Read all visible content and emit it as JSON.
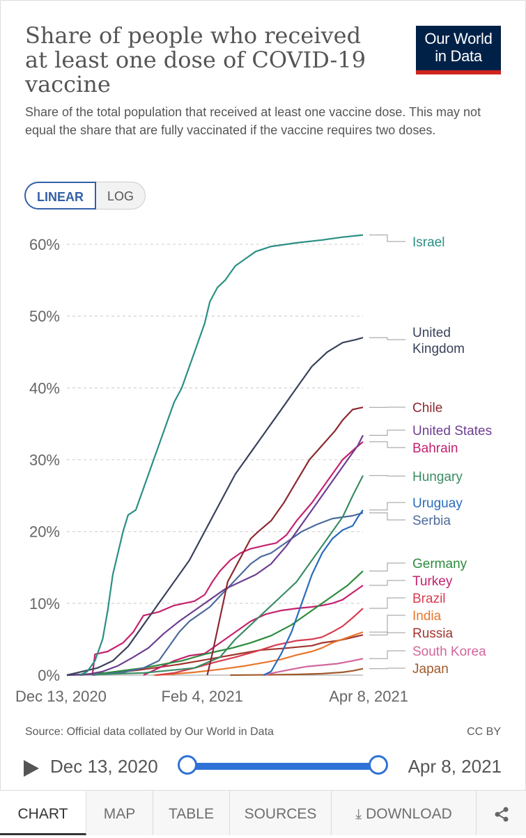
{
  "title": "Share of people who received at least one dose of COVID-19 vaccine",
  "subtitle": "Share of the total population that received at least one vaccine dose. This may not equal the share that are fully vaccinated if the vaccine requires two doses.",
  "logo": {
    "line1": "Our World",
    "line2": "in Data"
  },
  "scale_toggle": {
    "linear": "LINEAR",
    "log": "LOG",
    "selected": "LINEAR"
  },
  "source": "Source: Official data collated by Our World in Data",
  "license": "CC BY",
  "timeline": {
    "start": "Dec 13, 2020",
    "end": "Apr 8, 2021"
  },
  "tabs": {
    "chart": "CHART",
    "map": "MAP",
    "table": "TABLE",
    "sources": "SOURCES",
    "download": "DOWNLOAD",
    "active": "chart"
  },
  "icons": {
    "play": "play-icon",
    "download": "download-icon",
    "share": "share-icon"
  },
  "colors": {
    "accent": "#3360a9",
    "logo_bg": "#002147",
    "logo_bar": "#ce261e"
  },
  "chart_data": {
    "type": "line",
    "xaxis": {
      "start": 0,
      "end": 116,
      "unit": "days since Dec 13, 2020",
      "ticks": [
        {
          "x": 0,
          "label": "Dec 13, 2020"
        },
        {
          "x": 53,
          "label": "Feb 4, 2021"
        },
        {
          "x": 116,
          "label": "Apr 8, 2021"
        }
      ]
    },
    "yaxis": {
      "min": 0,
      "max": 60,
      "ticks": [
        0,
        10,
        20,
        30,
        40,
        50,
        60
      ],
      "tick_format": "%"
    },
    "grid": true,
    "series": [
      {
        "name": "Israel",
        "color": "#2a8f84",
        "label_pos": 347,
        "points": [
          [
            5,
            0
          ],
          [
            8,
            0.5
          ],
          [
            11,
            2
          ],
          [
            14,
            5
          ],
          [
            16,
            9
          ],
          [
            18,
            14
          ],
          [
            20,
            17
          ],
          [
            22,
            20
          ],
          [
            24,
            22.3
          ],
          [
            27,
            23
          ],
          [
            30,
            26
          ],
          [
            33,
            29
          ],
          [
            36,
            32
          ],
          [
            39,
            35
          ],
          [
            42,
            38
          ],
          [
            45,
            40
          ],
          [
            48,
            43
          ],
          [
            51,
            46
          ],
          [
            54,
            49
          ],
          [
            56,
            52
          ],
          [
            59,
            54
          ],
          [
            62,
            55
          ],
          [
            64,
            56
          ],
          [
            66,
            57
          ],
          [
            70,
            58
          ],
          [
            74,
            59
          ],
          [
            80,
            59.7
          ],
          [
            90,
            60.2
          ],
          [
            100,
            60.6
          ],
          [
            108,
            61
          ],
          [
            116,
            61.3
          ]
        ]
      },
      {
        "name": "United Kingdom",
        "color": "#38425a",
        "label_pos": 486,
        "points": [
          [
            0,
            0
          ],
          [
            6,
            0.5
          ],
          [
            12,
            1
          ],
          [
            18,
            2
          ],
          [
            24,
            4
          ],
          [
            30,
            7
          ],
          [
            36,
            10
          ],
          [
            42,
            13
          ],
          [
            48,
            16
          ],
          [
            54,
            20
          ],
          [
            60,
            24
          ],
          [
            66,
            28
          ],
          [
            72,
            31
          ],
          [
            78,
            34
          ],
          [
            84,
            37
          ],
          [
            90,
            40
          ],
          [
            96,
            43
          ],
          [
            102,
            45
          ],
          [
            108,
            46.3
          ],
          [
            113,
            46.7
          ],
          [
            116,
            47
          ]
        ]
      },
      {
        "name": "Chile",
        "color": "#8b2930",
        "label_pos": 585,
        "points": [
          [
            55,
            0
          ],
          [
            57,
            3
          ],
          [
            60,
            8
          ],
          [
            63,
            13
          ],
          [
            66,
            15
          ],
          [
            69,
            17
          ],
          [
            72,
            19
          ],
          [
            75,
            20
          ],
          [
            80,
            21.5
          ],
          [
            85,
            24
          ],
          [
            90,
            27
          ],
          [
            95,
            30
          ],
          [
            100,
            32
          ],
          [
            105,
            34
          ],
          [
            108,
            35.5
          ],
          [
            112,
            37
          ],
          [
            116,
            37.3
          ]
        ]
      },
      {
        "name": "United States",
        "color": "#6d3e91",
        "label_pos": 618,
        "points": [
          [
            0,
            0
          ],
          [
            8,
            0.1
          ],
          [
            14,
            0.5
          ],
          [
            20,
            1.3
          ],
          [
            26,
            2.5
          ],
          [
            32,
            3.8
          ],
          [
            38,
            5.8
          ],
          [
            44,
            7.5
          ],
          [
            50,
            9
          ],
          [
            56,
            10.5
          ],
          [
            62,
            12
          ],
          [
            68,
            13
          ],
          [
            74,
            14
          ],
          [
            80,
            15.5
          ],
          [
            86,
            18
          ],
          [
            92,
            21
          ],
          [
            98,
            24
          ],
          [
            104,
            27
          ],
          [
            110,
            30
          ],
          [
            114,
            32
          ],
          [
            116,
            33.4
          ]
        ]
      },
      {
        "name": "Bahrain",
        "color": "#c4216e",
        "label_pos": 643,
        "points": [
          [
            10,
            0
          ],
          [
            11,
            2.9
          ],
          [
            16,
            3.3
          ],
          [
            22,
            4.5
          ],
          [
            26,
            6
          ],
          [
            30,
            8.3
          ],
          [
            36,
            8.8
          ],
          [
            42,
            9.7
          ],
          [
            46,
            10
          ],
          [
            50,
            10.3
          ],
          [
            54,
            11.2
          ],
          [
            57,
            13
          ],
          [
            60,
            14.5
          ],
          [
            64,
            16
          ],
          [
            68,
            17
          ],
          [
            72,
            17.6
          ],
          [
            78,
            18.1
          ],
          [
            82,
            18.4
          ],
          [
            86,
            19.5
          ],
          [
            90,
            21.5
          ],
          [
            96,
            24
          ],
          [
            102,
            27
          ],
          [
            108,
            30
          ],
          [
            113,
            31.6
          ],
          [
            116,
            32.5
          ]
        ]
      },
      {
        "name": "Hungary",
        "color": "#3a8c63",
        "label_pos": 684,
        "points": [
          [
            0,
            0
          ],
          [
            30,
            0.3
          ],
          [
            50,
            1
          ],
          [
            60,
            2.5
          ],
          [
            66,
            5
          ],
          [
            72,
            7
          ],
          [
            78,
            9
          ],
          [
            84,
            11
          ],
          [
            90,
            13
          ],
          [
            96,
            16
          ],
          [
            102,
            19
          ],
          [
            108,
            22
          ],
          [
            112,
            25
          ],
          [
            116,
            27.8
          ]
        ]
      },
      {
        "name": "Uruguay",
        "color": "#286bbb",
        "label_pos": 722,
        "points": [
          [
            77,
            0
          ],
          [
            80,
            0.5
          ],
          [
            84,
            3
          ],
          [
            88,
            6
          ],
          [
            92,
            10
          ],
          [
            96,
            14
          ],
          [
            100,
            17
          ],
          [
            104,
            19
          ],
          [
            108,
            20.2
          ],
          [
            112,
            20.8
          ],
          [
            114,
            22
          ],
          [
            116,
            23
          ]
        ]
      },
      {
        "name": "Serbia",
        "color": "#4c6a9c",
        "label_pos": 747,
        "points": [
          [
            10,
            0
          ],
          [
            16,
            0.2
          ],
          [
            22,
            0.4
          ],
          [
            30,
            1
          ],
          [
            36,
            2
          ],
          [
            40,
            4
          ],
          [
            44,
            6
          ],
          [
            48,
            7.5
          ],
          [
            52,
            8.5
          ],
          [
            56,
            9.5
          ],
          [
            60,
            11
          ],
          [
            64,
            12.5
          ],
          [
            68,
            14
          ],
          [
            72,
            15.5
          ],
          [
            76,
            16.5
          ],
          [
            80,
            17
          ],
          [
            86,
            18.5
          ],
          [
            92,
            20
          ],
          [
            98,
            21
          ],
          [
            104,
            21.8
          ],
          [
            108,
            22
          ],
          [
            112,
            22.2
          ],
          [
            116,
            22.6
          ]
        ]
      },
      {
        "name": "Germany",
        "color": "#2c8b3c",
        "label_pos": 809,
        "points": [
          [
            0,
            0
          ],
          [
            15,
            0.3
          ],
          [
            30,
            1
          ],
          [
            45,
            2
          ],
          [
            55,
            3
          ],
          [
            65,
            3.8
          ],
          [
            72,
            4.5
          ],
          [
            80,
            5.5
          ],
          [
            88,
            7
          ],
          [
            96,
            9
          ],
          [
            104,
            11
          ],
          [
            110,
            12.5
          ],
          [
            116,
            14.5
          ]
        ]
      },
      {
        "name": "Turkey",
        "color": "#c4216e",
        "label_pos": 834,
        "points": [
          [
            30,
            0
          ],
          [
            36,
            1
          ],
          [
            42,
            2
          ],
          [
            48,
            2.7
          ],
          [
            54,
            3
          ],
          [
            60,
            4.5
          ],
          [
            66,
            6
          ],
          [
            72,
            7.5
          ],
          [
            78,
            8.5
          ],
          [
            84,
            9
          ],
          [
            90,
            9.3
          ],
          [
            96,
            9.5
          ],
          [
            100,
            9.7
          ],
          [
            104,
            10
          ],
          [
            108,
            10.5
          ],
          [
            112,
            11.5
          ],
          [
            116,
            12.5
          ]
        ]
      },
      {
        "name": "Brazil",
        "color": "#d73c50",
        "label_pos": 859,
        "points": [
          [
            35,
            0
          ],
          [
            42,
            0.3
          ],
          [
            50,
            1
          ],
          [
            58,
            1.8
          ],
          [
            66,
            2.5
          ],
          [
            74,
            3.3
          ],
          [
            82,
            4.2
          ],
          [
            90,
            4.8
          ],
          [
            96,
            5
          ],
          [
            100,
            5.3
          ],
          [
            104,
            6
          ],
          [
            108,
            6.8
          ],
          [
            112,
            8
          ],
          [
            116,
            9.3
          ]
        ]
      },
      {
        "name": "India",
        "color": "#e8762b",
        "label_pos": 884,
        "points": [
          [
            34,
            0
          ],
          [
            40,
            0.1
          ],
          [
            50,
            0.4
          ],
          [
            60,
            0.8
          ],
          [
            70,
            1.3
          ],
          [
            78,
            1.8
          ],
          [
            84,
            2.2
          ],
          [
            90,
            2.8
          ],
          [
            96,
            3.3
          ],
          [
            100,
            3.8
          ],
          [
            104,
            4.5
          ],
          [
            108,
            5
          ],
          [
            112,
            5.5
          ],
          [
            116,
            6
          ]
        ]
      },
      {
        "name": "Russia",
        "color": "#a2352e",
        "label_pos": 909,
        "points": [
          [
            5,
            0
          ],
          [
            12,
            0.2
          ],
          [
            20,
            0.4
          ],
          [
            28,
            0.7
          ],
          [
            36,
            1.1
          ],
          [
            44,
            1.5
          ],
          [
            52,
            2
          ],
          [
            60,
            2.5
          ],
          [
            68,
            3
          ],
          [
            76,
            3.5
          ],
          [
            84,
            3.7
          ],
          [
            90,
            3.9
          ],
          [
            96,
            4.1
          ],
          [
            100,
            4.5
          ],
          [
            106,
            4.8
          ],
          [
            110,
            5.1
          ],
          [
            116,
            5.6
          ]
        ]
      },
      {
        "name": "South Korea",
        "color": "#d1669d",
        "label_pos": 935,
        "points": [
          [
            77,
            0
          ],
          [
            82,
            0.4
          ],
          [
            88,
            0.8
          ],
          [
            94,
            1.2
          ],
          [
            100,
            1.4
          ],
          [
            106,
            1.6
          ],
          [
            112,
            2
          ],
          [
            116,
            2.3
          ]
        ]
      },
      {
        "name": "Japan",
        "color": "#a05a2c",
        "label_pos": 960,
        "points": [
          [
            64,
            0
          ],
          [
            70,
            0.02
          ],
          [
            80,
            0.05
          ],
          [
            90,
            0.1
          ],
          [
            100,
            0.2
          ],
          [
            108,
            0.4
          ],
          [
            112,
            0.6
          ],
          [
            116,
            0.9
          ]
        ]
      }
    ]
  }
}
